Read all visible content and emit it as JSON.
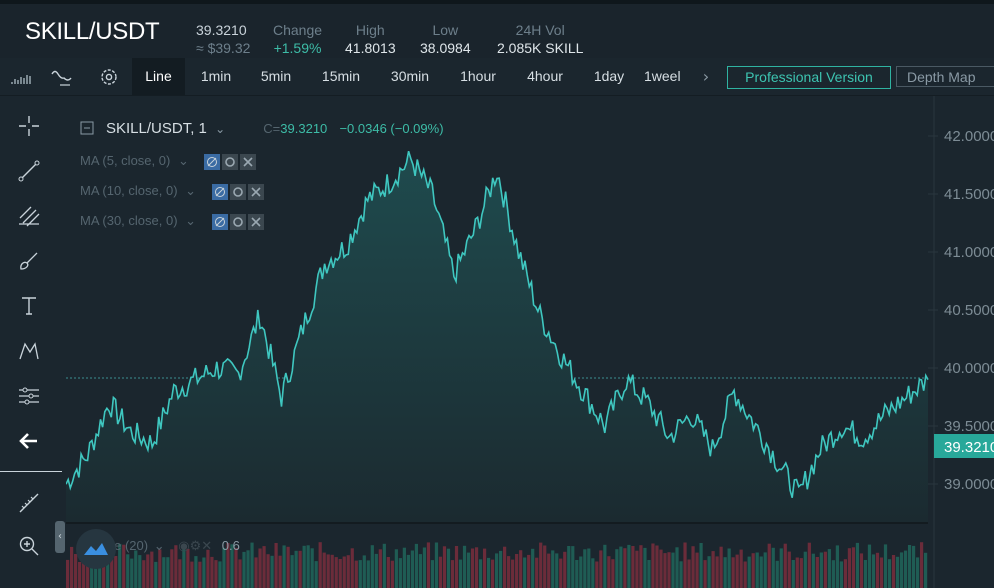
{
  "header": {
    "pair": "SKILL/USDT",
    "last_price": "39.3210",
    "last_price_usd": "≈ $39.32",
    "change_label": "Change",
    "change_value": "+1.59%",
    "high_label": "High",
    "high_value": "41.8013",
    "low_label": "Low",
    "low_value": "38.0984",
    "vol_label": "24H Vol",
    "vol_value": "2.085K SKILL"
  },
  "toolbar": {
    "icons": [
      "candles-chart-icon",
      "indicator-icon",
      "settings-gear-icon"
    ],
    "intervals": [
      "Line",
      "1min",
      "5min",
      "15min",
      "30min",
      "1hour",
      "4hour",
      "1day",
      "1weel"
    ],
    "active_interval": "Line",
    "pro_label": "Professional Version",
    "depth_label": "Depth Map"
  },
  "sidebar": {
    "tools": [
      "crosshair-icon",
      "trend-line-icon",
      "fib-lines-icon",
      "brush-icon",
      "text-icon",
      "pattern-icon",
      "measure-icon",
      "back-arrow-icon",
      "ruler-icon",
      "zoom-in-icon"
    ]
  },
  "legend": {
    "symbol": "SKILL/USDT, 1",
    "close_prefix": "C=",
    "close_value": "39.3210",
    "change": "−0.0346 (−0.09%)",
    "ma": [
      {
        "label": "MA (5, close, 0)"
      },
      {
        "label": "MA (10, close, 0)"
      },
      {
        "label": "MA (30, close, 0)"
      }
    ],
    "volume_label": "Volume (20)",
    "volume_value": "0.6"
  },
  "chart_data": {
    "type": "area",
    "series": [
      {
        "x": [
          0,
          5,
          10,
          15,
          20,
          25,
          30,
          35,
          40,
          45,
          50,
          55,
          60,
          65,
          70,
          75,
          80,
          85,
          90,
          95,
          100,
          105,
          110,
          115,
          120,
          125,
          130,
          135,
          140,
          145,
          150,
          155,
          160,
          165,
          170,
          175,
          180,
          185,
          190,
          195,
          200
        ],
        "values": [
          39.0,
          39.25,
          39.7,
          39.45,
          39.35,
          39.8,
          39.9,
          40.0,
          39.95,
          40.45,
          39.75,
          40.35,
          40.9,
          41.05,
          41.45,
          41.6,
          41.8,
          41.5,
          40.8,
          41.2,
          41.7,
          41.0,
          40.45,
          40.1,
          39.8,
          39.5,
          39.9,
          39.7,
          39.4,
          39.6,
          39.3,
          39.8,
          39.5,
          39.2,
          38.9,
          39.3,
          39.5,
          39.4,
          39.6,
          39.75,
          39.9
        ]
      }
    ],
    "yticks": [
      "42.0000",
      "41.5000",
      "41.0000",
      "40.5000",
      "40.0000",
      "39.5000",
      "39.0000"
    ],
    "ylim": [
      38.8,
      42.1
    ],
    "reference_line": 39.9,
    "last_value_label": "39.3210",
    "colors": {
      "line": "#3fc7c0",
      "area": "#1f4b4e",
      "up": "#1f5c54",
      "down": "#6b2c3a",
      "axis_text": "#7d8c95",
      "price_tag": "#28a89a"
    },
    "volume_bars": 215
  }
}
